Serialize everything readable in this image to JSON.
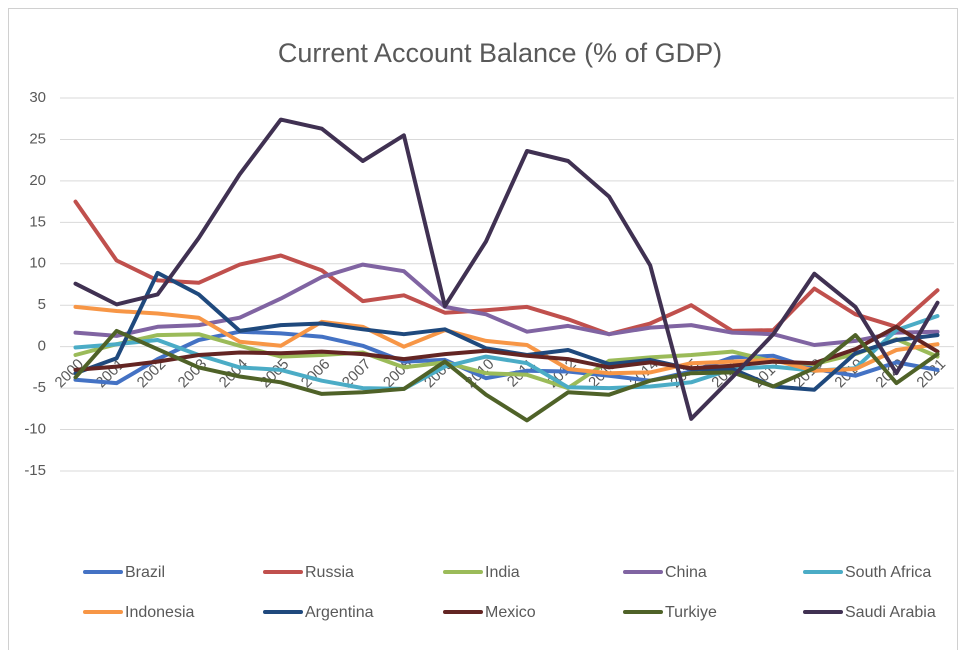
{
  "chart_data": {
    "type": "line",
    "title": "Current Account Balance (% of GDP)",
    "categories": [
      "2000",
      "2001",
      "2002",
      "2003",
      "2004",
      "2005",
      "2006",
      "2007",
      "2008",
      "2009",
      "2010",
      "2011",
      "2012",
      "2013",
      "2014",
      "2015",
      "2016",
      "2017",
      "2018",
      "2019",
      "2020",
      "2021"
    ],
    "ylim": [
      -15,
      30
    ],
    "yticks": [
      -15,
      -10,
      -5,
      0,
      5,
      10,
      15,
      20,
      25,
      30
    ],
    "grid": true,
    "legend": "bottom",
    "series": [
      {
        "name": "Brazil",
        "color": "#4472c4",
        "values": [
          -4.0,
          -4.4,
          -1.5,
          0.8,
          1.8,
          1.6,
          1.2,
          0.1,
          -1.8,
          -1.6,
          -3.8,
          -2.9,
          -3.0,
          -3.5,
          -4.1,
          -3.0,
          -1.3,
          -1.1,
          -2.7,
          -3.5,
          -1.9,
          -2.8
        ]
      },
      {
        "name": "Russia",
        "color": "#c0504d",
        "values": [
          17.5,
          10.4,
          8.0,
          7.7,
          9.9,
          11.0,
          9.2,
          5.5,
          6.2,
          4.1,
          4.4,
          4.8,
          3.3,
          1.5,
          2.8,
          5.0,
          1.9,
          2.0,
          7.0,
          3.9,
          2.4,
          6.8
        ]
      },
      {
        "name": "India",
        "color": "#9bbb59",
        "values": [
          -1.0,
          0.3,
          1.4,
          1.5,
          0.1,
          -1.2,
          -1.0,
          -0.7,
          -2.5,
          -1.9,
          -3.2,
          -3.4,
          -5.0,
          -1.7,
          -1.3,
          -1.0,
          -0.6,
          -1.8,
          -2.1,
          -0.9,
          0.9,
          -1.2
        ]
      },
      {
        "name": "China",
        "color": "#8064a2",
        "values": [
          1.7,
          1.3,
          2.4,
          2.6,
          3.5,
          5.8,
          8.4,
          9.9,
          9.1,
          4.8,
          3.9,
          1.8,
          2.5,
          1.5,
          2.3,
          2.6,
          1.7,
          1.5,
          0.2,
          0.7,
          1.7,
          1.8
        ]
      },
      {
        "name": "South Africa",
        "color": "#4bacc6",
        "values": [
          -0.1,
          0.3,
          0.8,
          -1.0,
          -2.5,
          -2.8,
          -4.1,
          -5.0,
          -5.1,
          -2.4,
          -1.2,
          -2.0,
          -4.9,
          -5.0,
          -4.8,
          -4.3,
          -2.7,
          -2.4,
          -2.9,
          -2.6,
          2.0,
          3.7
        ]
      },
      {
        "name": "Indonesia",
        "color": "#f79646",
        "values": [
          4.8,
          4.3,
          4.0,
          3.5,
          0.6,
          0.1,
          3.0,
          2.4,
          0.0,
          2.0,
          0.7,
          0.2,
          -2.7,
          -3.2,
          -3.1,
          -2.0,
          -1.8,
          -1.6,
          -2.9,
          -2.7,
          -0.4,
          0.3
        ]
      },
      {
        "name": "Argentina",
        "color": "#1f497d",
        "values": [
          -3.2,
          -1.4,
          8.9,
          6.3,
          1.9,
          2.6,
          2.8,
          2.1,
          1.5,
          2.1,
          -0.2,
          -1.0,
          -0.4,
          -2.1,
          -1.6,
          -2.7,
          -2.7,
          -4.8,
          -5.2,
          -0.8,
          0.8,
          1.4
        ]
      },
      {
        "name": "Mexico",
        "color": "#632523",
        "values": [
          -2.8,
          -2.4,
          -1.8,
          -1.0,
          -0.7,
          -0.8,
          -0.6,
          -0.9,
          -1.5,
          -0.9,
          -0.5,
          -1.1,
          -1.5,
          -2.5,
          -1.9,
          -2.6,
          -2.3,
          -1.8,
          -2.0,
          -0.3,
          2.4,
          -0.6
        ]
      },
      {
        "name": "Turkiye",
        "color": "#4f6228",
        "values": [
          -3.7,
          1.9,
          -0.3,
          -2.5,
          -3.6,
          -4.3,
          -5.7,
          -5.5,
          -5.1,
          -1.8,
          -5.8,
          -8.9,
          -5.5,
          -5.8,
          -4.1,
          -3.2,
          -3.1,
          -4.8,
          -2.6,
          1.4,
          -4.4,
          -0.9
        ]
      },
      {
        "name": "Saudi Arabia",
        "color": "#403152",
        "values": [
          7.6,
          5.1,
          6.3,
          13.1,
          20.8,
          27.4,
          26.3,
          22.4,
          25.5,
          4.9,
          12.7,
          23.6,
          22.4,
          18.1,
          9.8,
          -8.7,
          -3.7,
          1.5,
          8.8,
          4.8,
          -3.2,
          5.3
        ]
      }
    ]
  }
}
